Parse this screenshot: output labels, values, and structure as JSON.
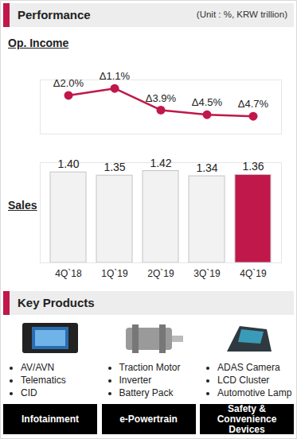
{
  "header": {
    "title": "Performance",
    "unit": "(Unit : %, KRW trillion)"
  },
  "chart_data": [
    {
      "type": "line",
      "title": "Op. Income",
      "categories": [
        "4Q`18",
        "1Q`19",
        "2Q`19",
        "3Q`19",
        "4Q`19"
      ],
      "values": [
        -2.0,
        -1.1,
        -3.9,
        -4.5,
        -4.7
      ],
      "value_labels": [
        "Δ2.0%",
        "Δ1.1%",
        "Δ3.9%",
        "Δ4.5%",
        "Δ4.7%"
      ],
      "color": "#c0184a",
      "marker": "circle",
      "data_labels": true,
      "ylim": [
        -7,
        0
      ],
      "tick_labels": false
    },
    {
      "type": "bar",
      "title": "Sales",
      "categories": [
        "4Q`18",
        "1Q`19",
        "2Q`19",
        "3Q`19",
        "4Q`19"
      ],
      "values": [
        1.4,
        1.35,
        1.42,
        1.34,
        1.36
      ],
      "value_labels": [
        "1.40",
        "1.35",
        "1.42",
        "1.34",
        "1.36"
      ],
      "colors": [
        "#f2f2f2",
        "#f2f2f2",
        "#f2f2f2",
        "#f2f2f2",
        "#c0184a"
      ],
      "data_labels": true,
      "ylim": [
        0,
        1.55
      ],
      "tick_labels": "x"
    }
  ],
  "key_products": {
    "title": "Key Products",
    "groups": [
      {
        "name": "Infotainment",
        "items": [
          "AV/AVN",
          "Telematics",
          "CID"
        ]
      },
      {
        "name": "e-Powertrain",
        "items": [
          "Traction Motor",
          "Inverter",
          "Battery Pack"
        ]
      },
      {
        "name": "Safety & Convenience Devices",
        "items": [
          "ADAS Camera",
          "LCD Cluster",
          "Automotive Lamp"
        ]
      }
    ]
  }
}
